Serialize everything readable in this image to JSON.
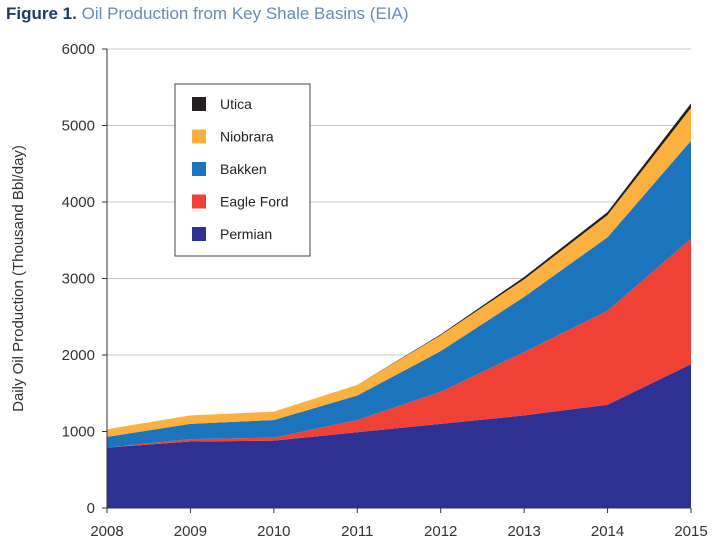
{
  "figure": {
    "label": "Figure 1.",
    "title": "Oil Production from Key Shale Basins (EIA)"
  },
  "chart_data": {
    "type": "area",
    "stacked": true,
    "title": "Oil Production from Key Shale Basins (EIA)",
    "xlabel": "",
    "ylabel": "Daily Oil Production (Thousand Bbl/day)",
    "x": [
      2008,
      2009,
      2010,
      2011,
      2012,
      2013,
      2014,
      2015
    ],
    "xticks": [
      "2008",
      "2009",
      "2010",
      "2011",
      "2012",
      "2013",
      "2014",
      "2015"
    ],
    "ylim": [
      0,
      6000
    ],
    "yticks": [
      "0",
      "1000",
      "2000",
      "3000",
      "4000",
      "5000",
      "6000"
    ],
    "grid": true,
    "legend_position": "top-left",
    "series": [
      {
        "name": "Permian",
        "color": "#2e3192",
        "values": [
          790,
          870,
          880,
          990,
          1100,
          1210,
          1350,
          1880
        ]
      },
      {
        "name": "Eagle Ford",
        "color": "#ef4136",
        "values": [
          0,
          30,
          40,
          160,
          420,
          830,
          1230,
          1640
        ]
      },
      {
        "name": "Bakken",
        "color": "#1c75bc",
        "values": [
          140,
          200,
          230,
          320,
          530,
          720,
          960,
          1280
        ]
      },
      {
        "name": "Niobrara",
        "color": "#fbb040",
        "values": [
          100,
          110,
          110,
          140,
          210,
          230,
          290,
          430
        ]
      },
      {
        "name": "Utica",
        "color": "#231f20",
        "values": [
          0,
          0,
          0,
          0,
          10,
          30,
          40,
          60
        ]
      }
    ],
    "legend_order": [
      "Utica",
      "Niobrara",
      "Bakken",
      "Eagle Ford",
      "Permian"
    ]
  }
}
